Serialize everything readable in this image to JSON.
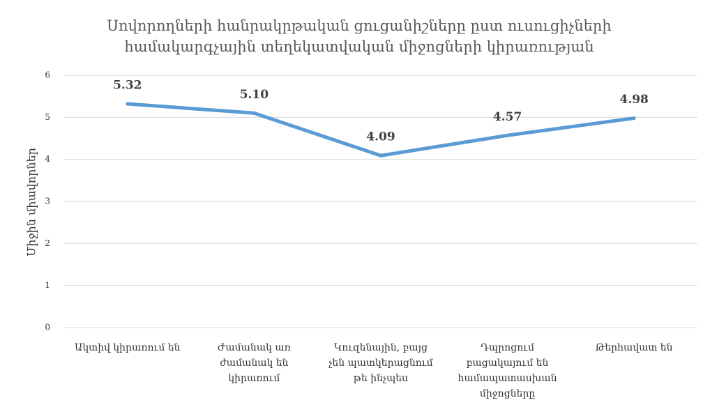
{
  "chart_data": {
    "type": "line",
    "title": "Սովորողների հանրակրթական ցուցանիշները ըստ ուսուցիչների համակարգչային տեղեկատվական միջոցների կիրառության",
    "y_label": "Միջին միավորներ",
    "categories": [
      "Ակտիվ կիրառում են",
      "Ժամանակ առ ժամանակ են կիրառում",
      "Կուզենային, բայց չեն պատկերացնում թե ինչպես",
      "Դպրոցում բացակայում են համապատասխան միջոցները",
      "Թերհավատ են"
    ],
    "series": [
      {
        "name": "Միջին միավորներ",
        "color": "#5b9bd5",
        "values": [
          5.32,
          5.1,
          4.09,
          4.57,
          4.98
        ],
        "value_labels": [
          "5.32",
          "5.10",
          "4.09",
          "4.57",
          "4.98"
        ]
      }
    ],
    "ylim": [
      0,
      6
    ],
    "yticks": [
      0,
      1,
      2,
      3,
      4,
      5,
      6
    ],
    "grid": true
  }
}
